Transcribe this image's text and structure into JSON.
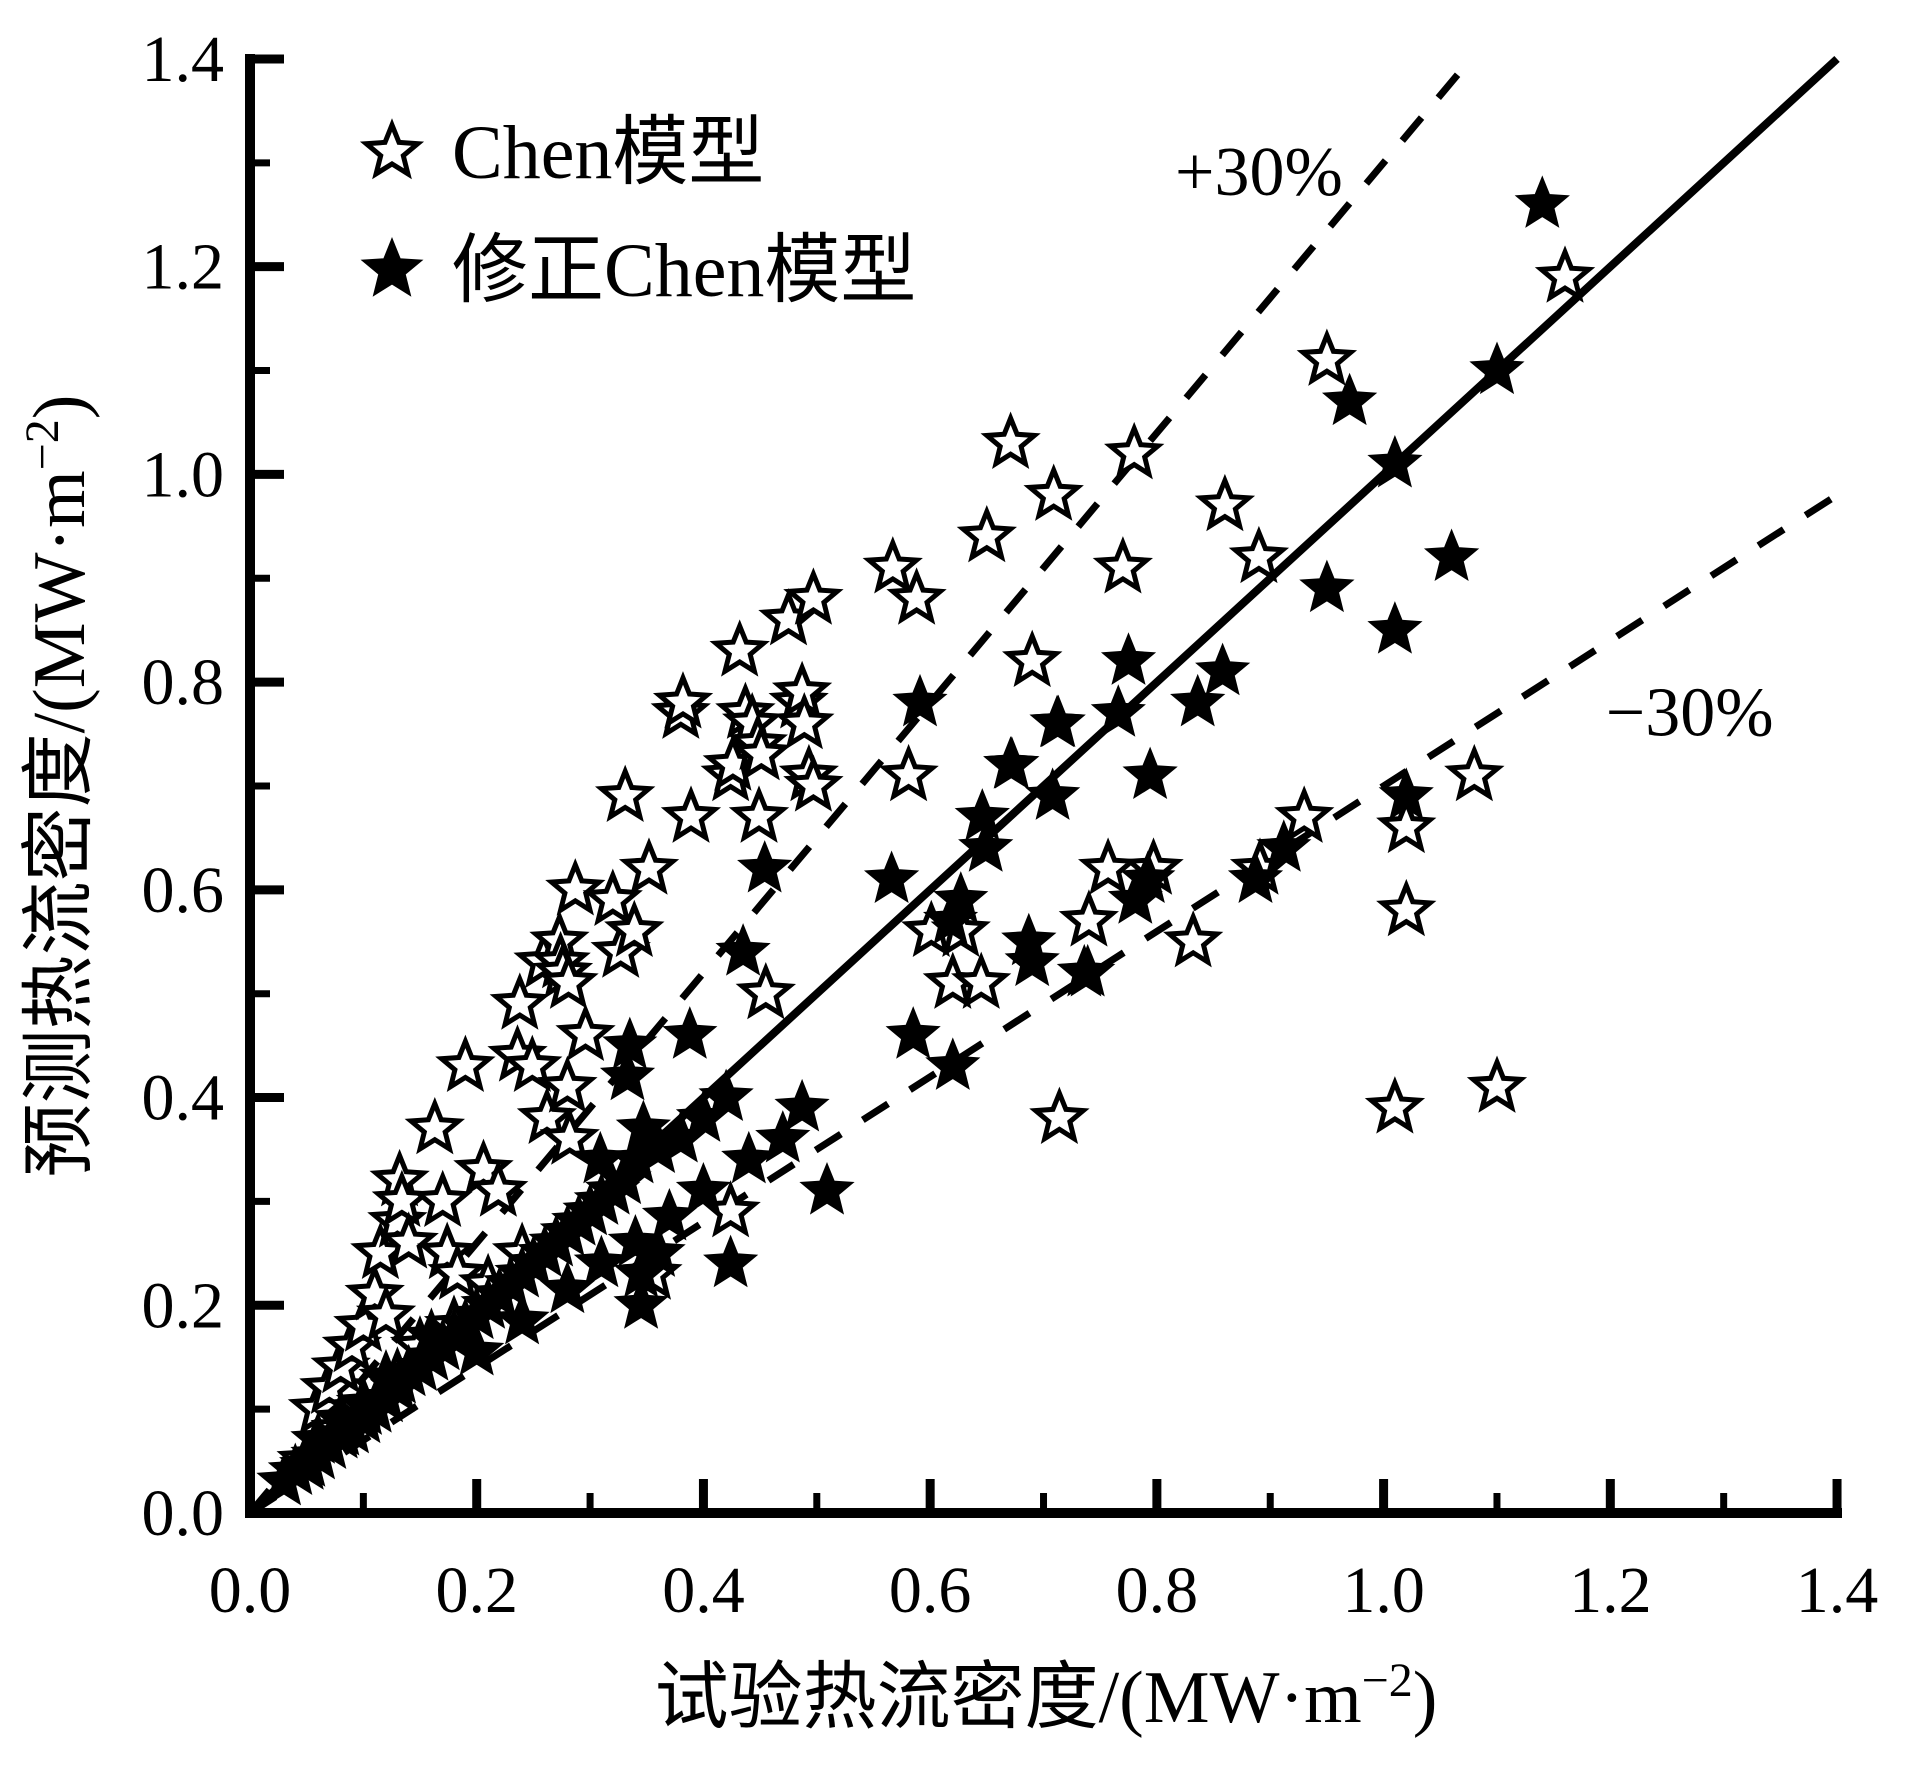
{
  "figure_background": "#ffffff",
  "ink_color": "#000000",
  "chart_data": {
    "type": "scatter",
    "title": "",
    "xlabel_full": "试验热流密度/(MW·m⁻²)",
    "ylabel_full": "预测热流密度/(MW·m⁻²)",
    "xlabel_parts": {
      "pre": "试验热流密度/(MW·m",
      "sup": "−2",
      "post": ")"
    },
    "ylabel_parts": {
      "pre": "预测热流密度/(MW·m",
      "sup": "−2",
      "post": ")"
    },
    "xlim": [
      0,
      1.4
    ],
    "ylim": [
      0,
      1.4
    ],
    "tick_step_major": 0.2,
    "tick_step_minor": 0.1,
    "xtick_labels": [
      "0.0",
      "0.2",
      "0.4",
      "0.6",
      "0.8",
      "1.0",
      "1.2",
      "1.4"
    ],
    "ytick_labels": [
      "0.0",
      "0.2",
      "0.4",
      "0.6",
      "0.8",
      "1.0",
      "1.2",
      "1.4"
    ],
    "grid": false,
    "legend_position": "upper-left-inside",
    "reference_lines": [
      {
        "name": "identity",
        "slope": 1.0,
        "style": "solid",
        "label": "",
        "label_xy": null
      },
      {
        "name": "plus30",
        "slope": 1.3,
        "style": "dashed",
        "label": "+30%",
        "label_xy": [
          0.89,
          1.29
        ]
      },
      {
        "name": "minus30",
        "slope": 0.7,
        "style": "dashed",
        "label": "−30%",
        "label_xy": [
          1.27,
          0.77
        ]
      }
    ],
    "series": [
      {
        "name": "Chen模型",
        "marker": "open-star",
        "points": [
          [
            0.05,
            0.05
          ],
          [
            0.06,
            0.1
          ],
          [
            0.07,
            0.12
          ],
          [
            0.08,
            0.08
          ],
          [
            0.08,
            0.14
          ],
          [
            0.09,
            0.16
          ],
          [
            0.1,
            0.1
          ],
          [
            0.1,
            0.18
          ],
          [
            0.11,
            0.21
          ],
          [
            0.115,
            0.25
          ],
          [
            0.12,
            0.19
          ],
          [
            0.13,
            0.13
          ],
          [
            0.13,
            0.28
          ],
          [
            0.132,
            0.32
          ],
          [
            0.134,
            0.3
          ],
          [
            0.14,
            0.26
          ],
          [
            0.15,
            0.16
          ],
          [
            0.163,
            0.37
          ],
          [
            0.17,
            0.3
          ],
          [
            0.174,
            0.25
          ],
          [
            0.18,
            0.18
          ],
          [
            0.183,
            0.23
          ],
          [
            0.19,
            0.43
          ],
          [
            0.206,
            0.33
          ],
          [
            0.21,
            0.22
          ],
          [
            0.219,
            0.31
          ],
          [
            0.236,
            0.44
          ],
          [
            0.238,
            0.49
          ],
          [
            0.24,
            0.25
          ],
          [
            0.249,
            0.43
          ],
          [
            0.259,
            0.53
          ],
          [
            0.262,
            0.38
          ],
          [
            0.273,
            0.55
          ],
          [
            0.274,
            0.53
          ],
          [
            0.276,
            0.52
          ],
          [
            0.28,
            0.41
          ],
          [
            0.281,
            0.51
          ],
          [
            0.282,
            0.36
          ],
          [
            0.287,
            0.6
          ],
          [
            0.296,
            0.46
          ],
          [
            0.32,
            0.59
          ],
          [
            0.327,
            0.54
          ],
          [
            0.331,
            0.69
          ],
          [
            0.339,
            0.56
          ],
          [
            0.352,
            0.62
          ],
          [
            0.355,
            0.23
          ],
          [
            0.38,
            0.77
          ],
          [
            0.382,
            0.78
          ],
          [
            0.389,
            0.67
          ],
          [
            0.424,
            0.29
          ],
          [
            0.424,
            0.71
          ],
          [
            0.426,
            0.72
          ],
          [
            0.432,
            0.83
          ],
          [
            0.437,
            0.77
          ],
          [
            0.443,
            0.76
          ],
          [
            0.448,
            0.74
          ],
          [
            0.449,
            0.67
          ],
          [
            0.451,
            0.73
          ],
          [
            0.455,
            0.5
          ],
          [
            0.475,
            0.86
          ],
          [
            0.484,
            0.78
          ],
          [
            0.487,
            0.79
          ],
          [
            0.489,
            0.76
          ],
          [
            0.493,
            0.71
          ],
          [
            0.497,
            0.88
          ],
          [
            0.497,
            0.7
          ],
          [
            0.567,
            0.91
          ],
          [
            0.581,
            0.71
          ],
          [
            0.588,
            0.88
          ],
          [
            0.601,
            0.56
          ],
          [
            0.62,
            0.51
          ],
          [
            0.627,
            0.56
          ],
          [
            0.645,
            0.51
          ],
          [
            0.65,
            0.94
          ],
          [
            0.671,
            1.03
          ],
          [
            0.69,
            0.82
          ],
          [
            0.709,
            0.98
          ],
          [
            0.714,
            0.38
          ],
          [
            0.74,
            0.57
          ],
          [
            0.757,
            0.62
          ],
          [
            0.77,
            0.91
          ],
          [
            0.78,
            1.02
          ],
          [
            0.797,
            0.62
          ],
          [
            0.832,
            0.55
          ],
          [
            0.86,
            0.97
          ],
          [
            0.89,
            0.92
          ],
          [
            0.891,
            0.62
          ],
          [
            0.93,
            0.67
          ],
          [
            0.95,
            1.11
          ],
          [
            1.01,
            0.39
          ],
          [
            1.02,
            0.58
          ],
          [
            1.02,
            0.66
          ],
          [
            1.08,
            0.71
          ],
          [
            1.1,
            0.41
          ],
          [
            1.16,
            1.19
          ]
        ]
      },
      {
        "name": "修正Chen模型",
        "marker": "filled-star",
        "points": [
          [
            0.03,
            0.03
          ],
          [
            0.04,
            0.04
          ],
          [
            0.05,
            0.045
          ],
          [
            0.06,
            0.055
          ],
          [
            0.06,
            0.07
          ],
          [
            0.07,
            0.065
          ],
          [
            0.08,
            0.075
          ],
          [
            0.08,
            0.09
          ],
          [
            0.09,
            0.08
          ],
          [
            0.1,
            0.09
          ],
          [
            0.1,
            0.105
          ],
          [
            0.11,
            0.1
          ],
          [
            0.12,
            0.11
          ],
          [
            0.12,
            0.13
          ],
          [
            0.13,
            0.12
          ],
          [
            0.14,
            0.135
          ],
          [
            0.15,
            0.14
          ],
          [
            0.16,
            0.15
          ],
          [
            0.16,
            0.17
          ],
          [
            0.17,
            0.16
          ],
          [
            0.18,
            0.17
          ],
          [
            0.19,
            0.18
          ],
          [
            0.2,
            0.155
          ],
          [
            0.2,
            0.19
          ],
          [
            0.21,
            0.2
          ],
          [
            0.22,
            0.21
          ],
          [
            0.23,
            0.22
          ],
          [
            0.24,
            0.185
          ],
          [
            0.24,
            0.23
          ],
          [
            0.25,
            0.24
          ],
          [
            0.26,
            0.25
          ],
          [
            0.27,
            0.26
          ],
          [
            0.28,
            0.215
          ],
          [
            0.28,
            0.27
          ],
          [
            0.29,
            0.28
          ],
          [
            0.3,
            0.29
          ],
          [
            0.31,
            0.24
          ],
          [
            0.31,
            0.3
          ],
          [
            0.309,
            0.34
          ],
          [
            0.32,
            0.31
          ],
          [
            0.33,
            0.32
          ],
          [
            0.333,
            0.42
          ],
          [
            0.335,
            0.45
          ],
          [
            0.34,
            0.26
          ],
          [
            0.341,
            0.34
          ],
          [
            0.345,
            0.2
          ],
          [
            0.345,
            0.23
          ],
          [
            0.347,
            0.37
          ],
          [
            0.36,
            0.25
          ],
          [
            0.36,
            0.35
          ],
          [
            0.37,
            0.285
          ],
          [
            0.38,
            0.36
          ],
          [
            0.388,
            0.46
          ],
          [
            0.4,
            0.31
          ],
          [
            0.4,
            0.38
          ],
          [
            0.42,
            0.4
          ],
          [
            0.424,
            0.24
          ],
          [
            0.435,
            0.54
          ],
          [
            0.44,
            0.34
          ],
          [
            0.454,
            0.62
          ],
          [
            0.47,
            0.36
          ],
          [
            0.487,
            0.39
          ],
          [
            0.509,
            0.31
          ],
          [
            0.566,
            0.61
          ],
          [
            0.585,
            0.46
          ],
          [
            0.591,
            0.78
          ],
          [
            0.618,
            0.57
          ],
          [
            0.62,
            0.43
          ],
          [
            0.627,
            0.59
          ],
          [
            0.646,
            0.67
          ],
          [
            0.649,
            0.64
          ],
          [
            0.671,
            0.72
          ],
          [
            0.672,
            0.72
          ],
          [
            0.687,
            0.55
          ],
          [
            0.69,
            0.53
          ],
          [
            0.708,
            0.69
          ],
          [
            0.712,
            0.76
          ],
          [
            0.713,
            0.76
          ],
          [
            0.736,
            0.52
          ],
          [
            0.739,
            0.52
          ],
          [
            0.766,
            0.77
          ],
          [
            0.775,
            0.82
          ],
          [
            0.781,
            0.59
          ],
          [
            0.792,
            0.61
          ],
          [
            0.794,
            0.71
          ],
          [
            0.836,
            0.78
          ],
          [
            0.858,
            0.81
          ],
          [
            0.887,
            0.61
          ],
          [
            0.912,
            0.64
          ],
          [
            0.95,
            0.89
          ],
          [
            0.97,
            1.07
          ],
          [
            1.01,
            0.85
          ],
          [
            1.01,
            1.01
          ],
          [
            1.02,
            0.69
          ],
          [
            1.06,
            0.92
          ],
          [
            1.1,
            1.1
          ],
          [
            1.14,
            1.26
          ]
        ]
      }
    ]
  }
}
